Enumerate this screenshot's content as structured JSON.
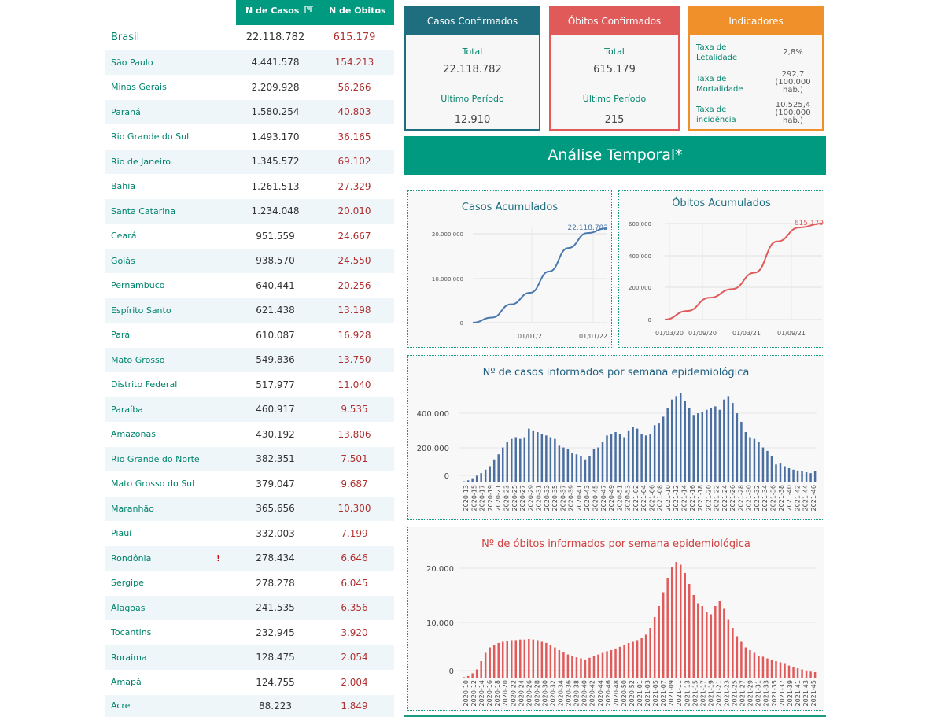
{
  "table": {
    "header_cases": "N de Casos",
    "header_deaths": "N de Óbitos",
    "rows": [
      {
        "name": "Brasil",
        "cases": "22.118.782",
        "deaths": "615.179"
      },
      {
        "name": "São Paulo",
        "cases": "4.441.578",
        "deaths": "154.213"
      },
      {
        "name": "Minas Gerais",
        "cases": "2.209.928",
        "deaths": "56.266"
      },
      {
        "name": "Paraná",
        "cases": "1.580.254",
        "deaths": "40.803"
      },
      {
        "name": "Rio Grande do Sul",
        "cases": "1.493.170",
        "deaths": "36.165"
      },
      {
        "name": "Rio de Janeiro",
        "cases": "1.345.572",
        "deaths": "69.102"
      },
      {
        "name": "Bahia",
        "cases": "1.261.513",
        "deaths": "27.329"
      },
      {
        "name": "Santa Catarina",
        "cases": "1.234.048",
        "deaths": "20.010"
      },
      {
        "name": "Ceará",
        "cases": "951.559",
        "deaths": "24.667"
      },
      {
        "name": "Goiás",
        "cases": "938.570",
        "deaths": "24.550"
      },
      {
        "name": "Pernambuco",
        "cases": "640.441",
        "deaths": "20.256"
      },
      {
        "name": "Espírito Santo",
        "cases": "621.438",
        "deaths": "13.198"
      },
      {
        "name": "Pará",
        "cases": "610.087",
        "deaths": "16.928"
      },
      {
        "name": "Mato Grosso",
        "cases": "549.836",
        "deaths": "13.750"
      },
      {
        "name": "Distrito Federal",
        "cases": "517.977",
        "deaths": "11.040"
      },
      {
        "name": "Paraíba",
        "cases": "460.917",
        "deaths": "9.535"
      },
      {
        "name": "Amazonas",
        "cases": "430.192",
        "deaths": "13.806"
      },
      {
        "name": "Rio Grande do Norte",
        "cases": "382.351",
        "deaths": "7.501"
      },
      {
        "name": "Mato Grosso do Sul",
        "cases": "379.047",
        "deaths": "9.687"
      },
      {
        "name": "Maranhão",
        "cases": "365.656",
        "deaths": "10.300"
      },
      {
        "name": "Piauí",
        "cases": "332.003",
        "deaths": "7.199"
      },
      {
        "name": "Rondônia",
        "cases": "278.434",
        "deaths": "6.646",
        "warn": "!"
      },
      {
        "name": "Sergipe",
        "cases": "278.278",
        "deaths": "6.045"
      },
      {
        "name": "Alagoas",
        "cases": "241.535",
        "deaths": "6.356"
      },
      {
        "name": "Tocantins",
        "cases": "232.945",
        "deaths": "3.920"
      },
      {
        "name": "Roraima",
        "cases": "128.475",
        "deaths": "2.054"
      },
      {
        "name": "Amapá",
        "cases": "124.755",
        "deaths": "2.004"
      },
      {
        "name": "Acre",
        "cases": "88.223",
        "deaths": "1.849"
      }
    ]
  },
  "cards": {
    "cases": {
      "title": "Casos Confirmados",
      "total_label": "Total",
      "total": "22.118.782",
      "period_label": "Último Período",
      "period": "12.910",
      "color": "#1e6e80"
    },
    "deaths": {
      "title": "Óbitos Confirmados",
      "total_label": "Total",
      "total": "615.179",
      "period_label": "Último Período",
      "period": "215",
      "color": "#e05a5a"
    },
    "indicators": {
      "title": "Indicadores",
      "color": "#f0902a",
      "items": [
        {
          "label": "Taxa de Letalidade",
          "value": "2,8%"
        },
        {
          "label": "Taxa de Mortalidade",
          "value": "292,7 (100.000 hab.)"
        },
        {
          "label": "Taxa de incidência",
          "value": "10.525,4 (100.000 hab.)"
        }
      ]
    }
  },
  "banner": "Análise Temporal*",
  "charts": {
    "cases_cum": {
      "title": "Casos Acumulados",
      "end_label": "22.118.782",
      "yticks": [
        "20.000.000",
        "10.000.000",
        "0"
      ],
      "xticks": [
        "01/01/21",
        "01/01/22"
      ],
      "color": "#4a78b0"
    },
    "deaths_cum": {
      "title": "Óbitos Acumulados",
      "end_label": "615.179",
      "yticks": [
        "600.000",
        "400.000",
        "200.000",
        "0"
      ],
      "xticks": [
        "01/03/20",
        "01/09/20",
        "01/03/21",
        "01/09/21"
      ],
      "color": "#e05a5a"
    },
    "cases_week": {
      "title": "Nº de casos informados por semana epidemiológica",
      "yticks": [
        "400.000",
        "200.000",
        "0"
      ],
      "color": "#4a6ea0",
      "xticks": [
        "2020-13",
        "2020-15",
        "2020-17",
        "2020-19",
        "2020-21",
        "2020-23",
        "2020-25",
        "2020-27",
        "2020-29",
        "2020-31",
        "2020-33",
        "2020-35",
        "2020-37",
        "2020-39",
        "2020-41",
        "2020-43",
        "2020-45",
        "2020-47",
        "2020-49",
        "2020-51",
        "2020-53",
        "2021-02",
        "2021-04",
        "2021-06",
        "2021-08",
        "2021-10",
        "2021-12",
        "2021-14",
        "2021-16",
        "2021-18",
        "2021-20",
        "2021-22",
        "2021-24",
        "2021-26",
        "2021-28",
        "2021-30",
        "2021-32",
        "2021-34",
        "2021-36",
        "2021-38",
        "2021-40",
        "2021-42",
        "2021-44",
        "2021-46"
      ]
    },
    "deaths_week": {
      "title": "Nº de óbitos informados por semana epidemiológica",
      "yticks": [
        "20.000",
        "10.000",
        "0"
      ],
      "color": "#e05a5a",
      "xticks": [
        "2020-10",
        "2020-12",
        "2020-14",
        "2020-16",
        "2020-18",
        "2020-20",
        "2020-22",
        "2020-24",
        "2020-26",
        "2020-28",
        "2020-30",
        "2020-32",
        "2020-34",
        "2020-36",
        "2020-38",
        "2020-40",
        "2020-42",
        "2020-44",
        "2020-46",
        "2020-48",
        "2020-50",
        "2020-52",
        "2021-01",
        "2021-03",
        "2021-05",
        "2021-07",
        "2021-09",
        "2021-11",
        "2021-13",
        "2021-15",
        "2021-17",
        "2021-19",
        "2021-21",
        "2021-23",
        "2021-25",
        "2021-27",
        "2021-29",
        "2021-31",
        "2021-33",
        "2021-35",
        "2021-37",
        "2021-39",
        "2021-41",
        "2021-43",
        "2021-45"
      ]
    }
  },
  "chart_data": [
    {
      "type": "line",
      "title": "Casos Acumulados",
      "x": [
        "2020-03",
        "2020-06",
        "2020-09",
        "2020-12",
        "2021-03",
        "2021-06",
        "2021-09",
        "2021-12"
      ],
      "values": [
        0,
        1200000,
        4300000,
        7000000,
        12000000,
        17500000,
        21000000,
        22118782
      ],
      "ylim": [
        0,
        22500000
      ]
    },
    {
      "type": "line",
      "title": "Óbitos Acumulados",
      "x": [
        "2020-03",
        "2020-06",
        "2020-09",
        "2020-12",
        "2021-03",
        "2021-06",
        "2021-09",
        "2021-12"
      ],
      "values": [
        0,
        55000,
        140000,
        195000,
        300000,
        500000,
        590000,
        615179
      ],
      "ylim": [
        0,
        620000
      ]
    },
    {
      "type": "bar",
      "title": "Nº de casos informados por semana epidemiológica",
      "values": [
        2000,
        8000,
        20000,
        35000,
        50000,
        70000,
        90000,
        130000,
        160000,
        200000,
        230000,
        250000,
        260000,
        250000,
        260000,
        310000,
        300000,
        290000,
        280000,
        270000,
        260000,
        250000,
        210000,
        200000,
        190000,
        170000,
        160000,
        150000,
        130000,
        150000,
        190000,
        200000,
        230000,
        270000,
        280000,
        290000,
        280000,
        260000,
        300000,
        320000,
        310000,
        280000,
        270000,
        280000,
        330000,
        340000,
        380000,
        430000,
        480000,
        500000,
        520000,
        470000,
        430000,
        390000,
        400000,
        410000,
        420000,
        430000,
        440000,
        420000,
        480000,
        500000,
        460000,
        400000,
        350000,
        290000,
        260000,
        250000,
        230000,
        200000,
        180000,
        150000,
        100000,
        110000,
        90000,
        80000,
        70000,
        65000,
        60000,
        55000,
        50000,
        60000
      ]
    },
    {
      "type": "bar",
      "title": "Nº de óbitos informados por semana epidemiológica",
      "values": [
        100,
        300,
        800,
        1500,
        3000,
        4500,
        5500,
        6000,
        6300,
        6500,
        6700,
        6800,
        6800,
        6900,
        6900,
        7000,
        6900,
        6800,
        6500,
        6300,
        6000,
        5500,
        5000,
        4600,
        4200,
        3900,
        3700,
        3500,
        3300,
        3600,
        3900,
        4200,
        4500,
        4800,
        5000,
        5300,
        5600,
        6000,
        6300,
        6500,
        6800,
        7200,
        7800,
        9000,
        11000,
        13000,
        15500,
        18000,
        20000,
        21000,
        20500,
        19000,
        17000,
        15000,
        13500,
        13000,
        12000,
        11500,
        13000,
        14000,
        12500,
        10500,
        9000,
        7500,
        6500,
        5500,
        5000,
        4500,
        4000,
        3800,
        3500,
        3200,
        3000,
        2800,
        2500,
        2200,
        1900,
        1700,
        1500,
        1300,
        1100,
        1000
      ]
    }
  ]
}
